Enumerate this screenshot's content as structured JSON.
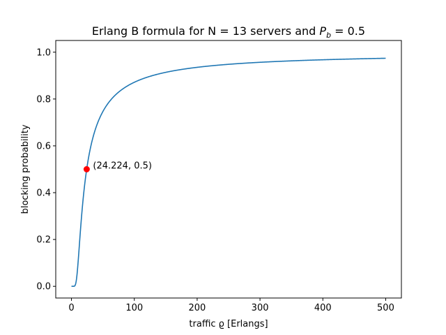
{
  "chart_data": {
    "type": "line",
    "title": {
      "prefix": "Erlang B formula for N = 13 servers and ",
      "math_symbol": "P",
      "math_subscript": "b",
      "suffix": " = 0.5"
    },
    "xlabel": "traffic ϱ [Erlangs]",
    "ylabel": "blocking probability",
    "xlim": [
      -25,
      525
    ],
    "ylim": [
      -0.05,
      1.05
    ],
    "x_ticks": [
      0,
      100,
      200,
      300,
      400,
      500
    ],
    "x_tick_labels": [
      "0",
      "100",
      "200",
      "300",
      "400",
      "500"
    ],
    "y_ticks": [
      0.0,
      0.2,
      0.4,
      0.6,
      0.8,
      1.0
    ],
    "y_tick_labels": [
      "0.0",
      "0.2",
      "0.4",
      "0.6",
      "0.8",
      "1.0"
    ],
    "grid": false,
    "series": [
      {
        "color": "#1f77b4",
        "formula": "Erlang B",
        "servers": 13,
        "x_start": 0,
        "x_end": 500
      }
    ],
    "marker": {
      "x": 24.224,
      "y": 0.5,
      "color": "#ff0000",
      "label": "(24.224, 0.5)"
    }
  }
}
